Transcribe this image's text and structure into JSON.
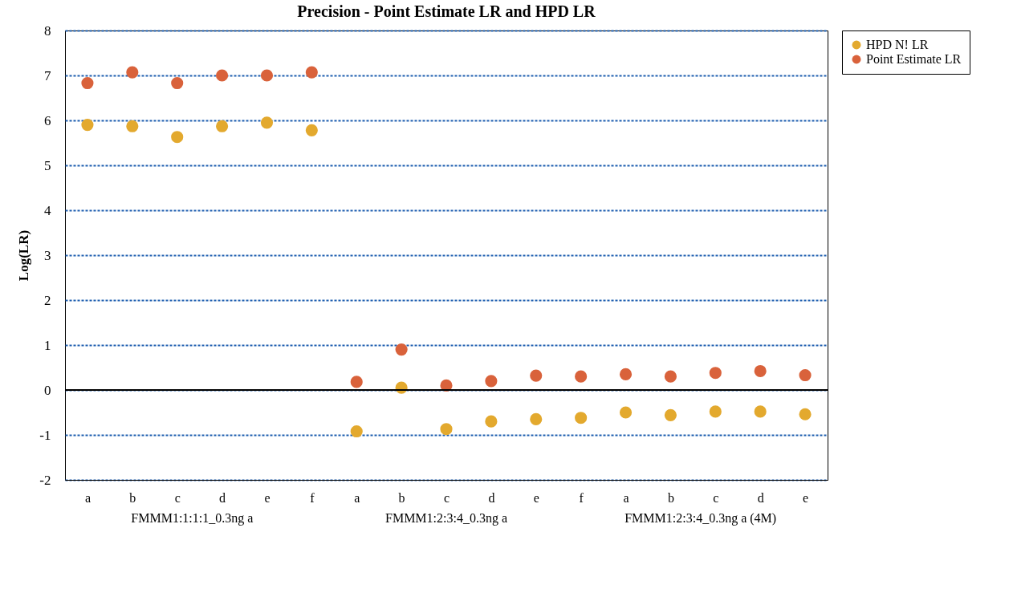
{
  "chart_data": {
    "type": "scatter",
    "title": "Precision - Point Estimate LR and HPD LR",
    "ylabel": "Log(LR)",
    "categories": [
      "a",
      "b",
      "c",
      "d",
      "e",
      "f",
      "a",
      "b",
      "c",
      "d",
      "e",
      "f",
      "a",
      "b",
      "c",
      "d",
      "e"
    ],
    "series": [
      {
        "name": "HPD N! LR",
        "color": "#e3a92e",
        "values": [
          5.9,
          5.87,
          5.63,
          5.87,
          5.95,
          5.78,
          -0.92,
          0.05,
          -0.87,
          -0.7,
          -0.65,
          -0.62,
          -0.5,
          -0.56,
          -0.48,
          -0.48,
          -0.54
        ]
      },
      {
        "name": "Point Estimate LR",
        "color": "#d9623b",
        "values": [
          6.83,
          7.07,
          6.83,
          7.0,
          7.0,
          7.07,
          0.18,
          0.9,
          0.1,
          0.2,
          0.32,
          0.3,
          0.35,
          0.3,
          0.38,
          0.42,
          0.33
        ]
      }
    ],
    "ylim": [
      -2,
      8
    ],
    "yticks": [
      -2,
      -1,
      0,
      1,
      2,
      3,
      4,
      5,
      6,
      7,
      8
    ],
    "grid": "y",
    "legend": "right",
    "marker": "circle",
    "ref_lines": [
      {
        "axis": "y",
        "value": 0,
        "color": "#000000"
      }
    ],
    "annotations": [
      "FMMM1:1:1:1_0.3ng a",
      "FMMM1:2:3:4_0.3ng a",
      "FMMM1:2:3:4_0.3ng a (4M)"
    ]
  }
}
